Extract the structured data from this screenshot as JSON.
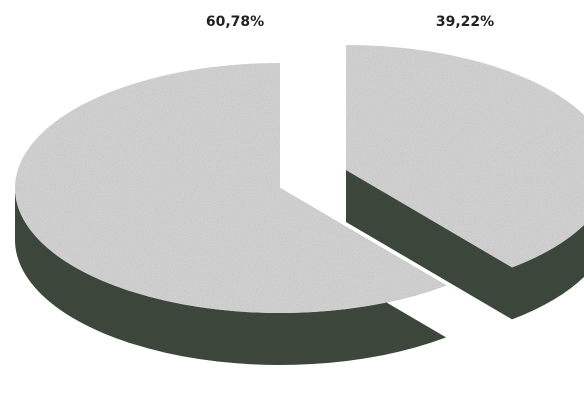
{
  "chart_data": {
    "type": "pie",
    "style": "3d-exploded",
    "title": "",
    "legend": "none",
    "slices": [
      {
        "label": "60,78%",
        "value": 60.78
      },
      {
        "label": "39,22%",
        "value": 39.22
      }
    ],
    "colors": {
      "top": "#d6d6d6",
      "side": "#3f4a3f",
      "background": "#ffffff",
      "label_text": "#222222"
    }
  }
}
